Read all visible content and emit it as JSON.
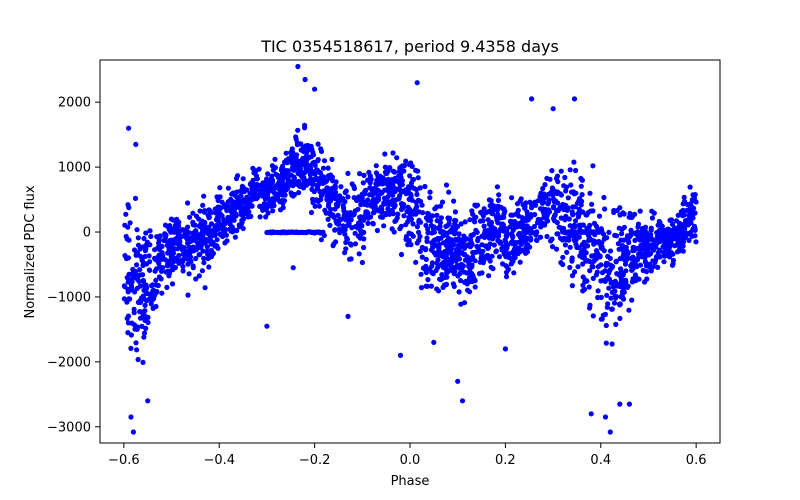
{
  "chart_data": {
    "type": "scatter",
    "title": "TIC 0354518617, period 9.4358 days",
    "xlabel": "Phase",
    "ylabel": "Normalized PDC flux",
    "xlim": [
      -0.65,
      0.65
    ],
    "ylim": [
      -3250,
      2650
    ],
    "x_ticks": [
      -0.6,
      -0.4,
      -0.2,
      0.0,
      0.2,
      0.4,
      0.6
    ],
    "x_tick_labels": [
      "−0.6",
      "−0.4",
      "−0.2",
      "0.0",
      "0.2",
      "0.4",
      "0.6"
    ],
    "y_ticks": [
      -3000,
      -2000,
      -1000,
      0,
      1000,
      2000
    ],
    "y_tick_labels": [
      "−3000",
      "−2000",
      "−1000",
      "0",
      "1000",
      "2000"
    ],
    "grid": false,
    "marker_color": "#0000ff",
    "series": [
      {
        "x_range": [
          -0.6,
          0.6
        ],
        "envelope": [
          [
            -0.6,
            -1700,
            1000
          ],
          [
            -0.58,
            -2600,
            800
          ],
          [
            -0.56,
            -2300,
            600
          ],
          [
            -0.54,
            -2000,
            500
          ],
          [
            -0.52,
            -1200,
            400
          ],
          [
            -0.5,
            -1100,
            500
          ],
          [
            -0.48,
            -1000,
            700
          ],
          [
            -0.46,
            -1100,
            800
          ],
          [
            -0.44,
            -1000,
            700
          ],
          [
            -0.42,
            -900,
            800
          ],
          [
            -0.4,
            -700,
            900
          ],
          [
            -0.38,
            -500,
            1000
          ],
          [
            -0.36,
            -300,
            1000
          ],
          [
            -0.34,
            -100,
            1100
          ],
          [
            -0.32,
            0,
            1300
          ],
          [
            -0.3,
            0,
            1200
          ],
          [
            -0.28,
            100,
            1300
          ],
          [
            -0.26,
            200,
            1400
          ],
          [
            -0.24,
            200,
            1800
          ],
          [
            -0.22,
            200,
            1900
          ],
          [
            -0.2,
            0,
            1700
          ],
          [
            -0.18,
            -300,
            1600
          ],
          [
            -0.16,
            -500,
            1400
          ],
          [
            -0.14,
            -600,
            1200
          ],
          [
            -0.12,
            -800,
            1000
          ],
          [
            -0.1,
            -600,
            1200
          ],
          [
            -0.08,
            -300,
            1300
          ],
          [
            -0.06,
            -100,
            1300
          ],
          [
            -0.04,
            -200,
            1500
          ],
          [
            -0.02,
            -500,
            1600
          ],
          [
            0.0,
            -900,
            1600
          ],
          [
            0.02,
            -1300,
            1300
          ],
          [
            0.04,
            -1500,
            1000
          ],
          [
            0.06,
            -1400,
            900
          ],
          [
            0.08,
            -1300,
            900
          ],
          [
            0.1,
            -1300,
            700
          ],
          [
            0.12,
            -1700,
            600
          ],
          [
            0.14,
            -1300,
            800
          ],
          [
            0.16,
            -900,
            900
          ],
          [
            0.18,
            -700,
            900
          ],
          [
            0.2,
            -900,
            800
          ],
          [
            0.22,
            -900,
            700
          ],
          [
            0.24,
            -700,
            800
          ],
          [
            0.26,
            -600,
            900
          ],
          [
            0.28,
            -400,
            1100
          ],
          [
            0.3,
            -500,
            1200
          ],
          [
            0.32,
            -800,
            1400
          ],
          [
            0.34,
            -1200,
            1500
          ],
          [
            0.36,
            -1500,
            1500
          ],
          [
            0.38,
            -1800,
            1300
          ],
          [
            0.4,
            -2000,
            1000
          ],
          [
            0.42,
            -2200,
            800
          ],
          [
            0.44,
            -2000,
            700
          ],
          [
            0.46,
            -1600,
            700
          ],
          [
            0.48,
            -1100,
            600
          ],
          [
            0.5,
            -1000,
            500
          ],
          [
            0.52,
            -900,
            500
          ],
          [
            0.54,
            -800,
            500
          ],
          [
            0.56,
            -700,
            600
          ],
          [
            0.58,
            -500,
            800
          ],
          [
            0.6,
            -300,
            800
          ]
        ],
        "outliers": [
          [
            -0.585,
            -2850
          ],
          [
            -0.58,
            -3080
          ],
          [
            -0.59,
            1600
          ],
          [
            -0.575,
            1350
          ],
          [
            -0.55,
            -2600
          ],
          [
            -0.235,
            2550
          ],
          [
            -0.22,
            2350
          ],
          [
            -0.2,
            2200
          ],
          [
            -0.245,
            -550
          ],
          [
            -0.3,
            -1450
          ],
          [
            0.015,
            2300
          ],
          [
            0.11,
            -2600
          ],
          [
            0.1,
            -2300
          ],
          [
            0.2,
            -1800
          ],
          [
            0.255,
            2050
          ],
          [
            0.345,
            2050
          ],
          [
            0.38,
            -2800
          ],
          [
            0.41,
            -2850
          ],
          [
            0.42,
            -3080
          ],
          [
            0.44,
            -2650
          ],
          [
            0.46,
            -2650
          ],
          [
            0.3,
            1900
          ],
          [
            -0.02,
            -1900
          ],
          [
            0.05,
            -1700
          ],
          [
            -0.13,
            -1300
          ]
        ],
        "flat_segments": [
          [
            -0.3,
            -0.18,
            -5
          ],
          [
            0.32,
            0.4,
            0
          ]
        ]
      }
    ]
  }
}
